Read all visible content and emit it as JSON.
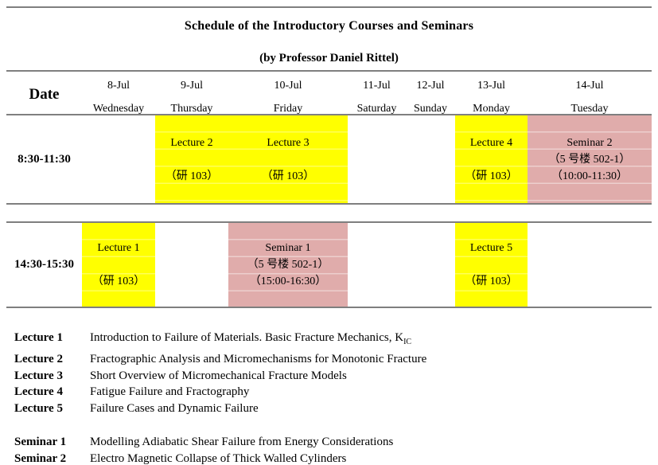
{
  "title": "Schedule of the Introductory Courses and Seminars",
  "subtitle": "(by Professor Daniel Rittel)",
  "colors": {
    "lecture_highlight": "#FFFF00",
    "seminar_highlight": "#E0ACAB",
    "rule_lines": "#7F7F7F",
    "text": "#000000"
  },
  "schedule": {
    "date_header": "Date",
    "days": [
      {
        "date": "8-Jul",
        "weekday": "Wednesday"
      },
      {
        "date": "9-Jul",
        "weekday": "Thursday"
      },
      {
        "date": "10-Jul",
        "weekday": "Friday"
      },
      {
        "date": "11-Jul",
        "weekday": "Saturday"
      },
      {
        "date": "12-Jul",
        "weekday": "Sunday"
      },
      {
        "date": "13-Jul",
        "weekday": "Monday"
      },
      {
        "date": "14-Jul",
        "weekday": "Tuesday"
      }
    ],
    "rows": [
      {
        "time": "8:30-11:30",
        "cells": {
          "thursday": {
            "type": "lecture",
            "lines": [
              "Lecture 2",
              "（研 103）"
            ]
          },
          "friday": {
            "type": "lecture",
            "lines": [
              "Lecture 3",
              "（研 103）"
            ]
          },
          "monday": {
            "type": "lecture",
            "lines": [
              "Lecture 4",
              "（研 103）"
            ]
          },
          "tuesday": {
            "type": "seminar",
            "lines": [
              "Seminar 2",
              "（5 号楼 502-1）",
              "（10:00-11:30）"
            ]
          }
        }
      },
      {
        "time": "14:30-15:30",
        "cells": {
          "wednesday": {
            "type": "lecture",
            "lines": [
              "Lecture 1",
              "（研 103）"
            ]
          },
          "friday": {
            "type": "seminar",
            "lines": [
              "Seminar 1",
              "（5 号楼 502-1）",
              "（15:00-16:30）"
            ]
          },
          "monday": {
            "type": "lecture",
            "lines": [
              "Lecture 5",
              "（研 103）"
            ]
          }
        }
      }
    ]
  },
  "legend": {
    "lectures": [
      {
        "label": "Lecture 1",
        "description": "Introduction to Failure of Materials. Basic Fracture Mechanics, K",
        "subscript": "IC"
      },
      {
        "label": "Lecture 2",
        "description": "Fractographic Analysis and Micromechanisms for Monotonic Fracture"
      },
      {
        "label": "Lecture 3",
        "description": "Short Overview of Micromechanical Fracture Models"
      },
      {
        "label": "Lecture 4",
        "description": "Fatigue Failure and Fractography"
      },
      {
        "label": "Lecture 5",
        "description": "Failure Cases and Dynamic Failure"
      }
    ],
    "seminars": [
      {
        "label": "Seminar 1",
        "description": "Modelling Adiabatic Shear Failure from Energy Considerations"
      },
      {
        "label": "Seminar 2",
        "description": "Electro Magnetic Collapse of Thick Walled Cylinders"
      }
    ]
  }
}
